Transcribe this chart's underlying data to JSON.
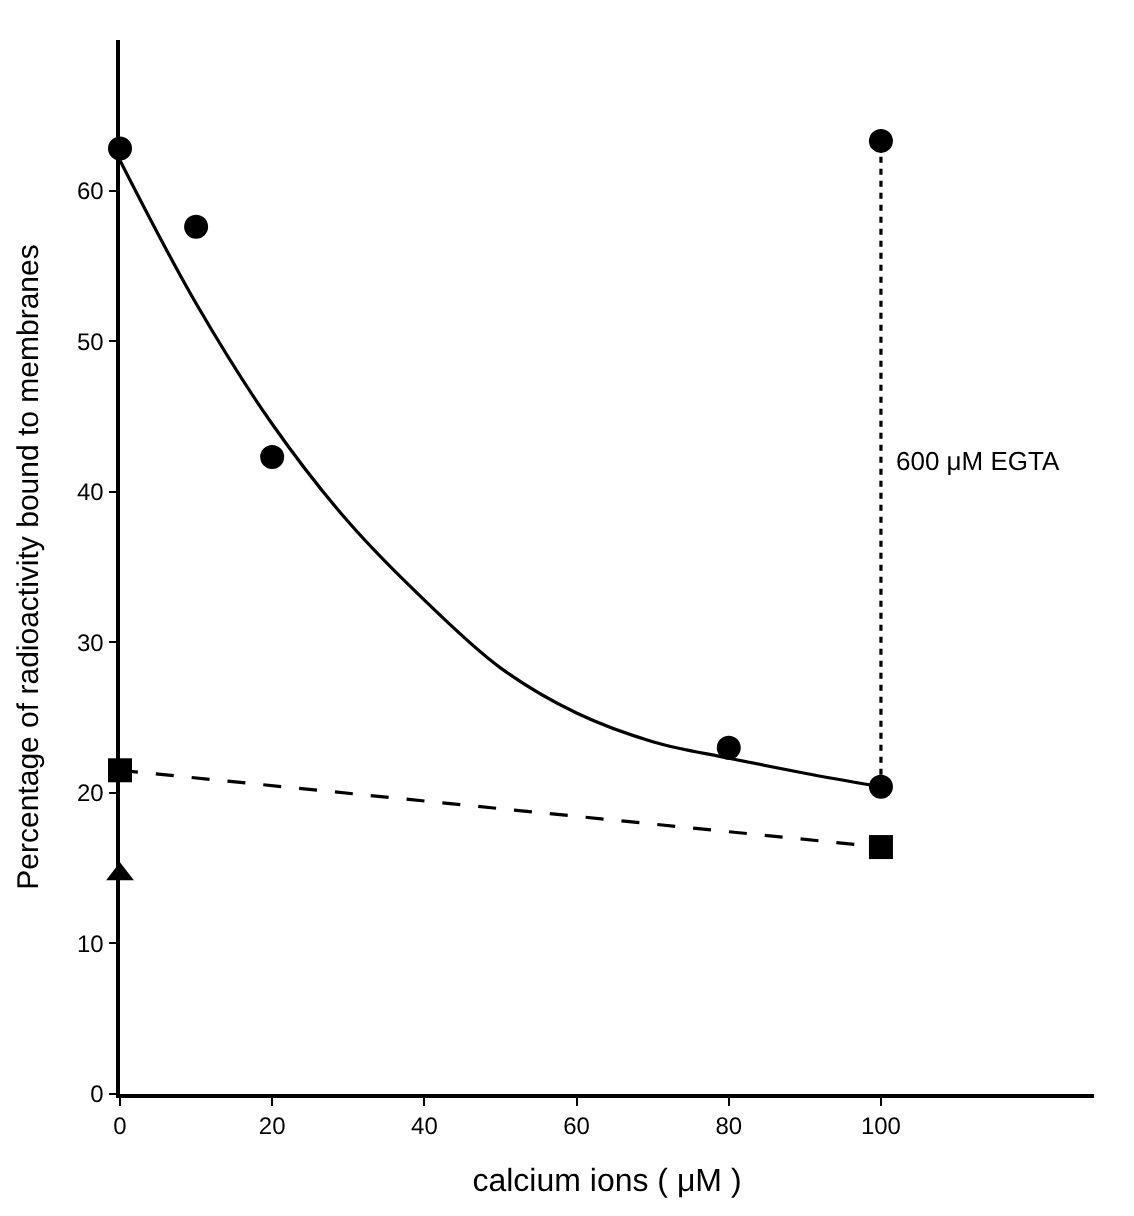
{
  "chart_data": {
    "type": "scatter",
    "xlabel": "calcium ions ( μM )",
    "ylabel": "Percentage of radioactivity bound to membranes",
    "xlim": [
      0,
      128
    ],
    "ylim": [
      0,
      70
    ],
    "xticks": [
      0,
      20,
      40,
      60,
      80,
      100
    ],
    "yticks": [
      0,
      10,
      20,
      30,
      40,
      50,
      60
    ],
    "annotations": [
      {
        "text": "600 μM EGTA",
        "x": 100,
        "y": 42
      }
    ],
    "series": [
      {
        "marker": "circle",
        "color": "#000000",
        "x": [
          0,
          10,
          20,
          80,
          100,
          100
        ],
        "values": [
          62.8,
          57.6,
          42.3,
          23.0,
          20.4,
          63.3
        ]
      },
      {
        "type": "line",
        "marker": "none",
        "line_style": "solid",
        "color": "#000000",
        "x": [
          0,
          10,
          20,
          30,
          40,
          50,
          60,
          70,
          80,
          90,
          100
        ],
        "values": [
          62,
          52.5,
          44.5,
          38,
          32.8,
          28.3,
          25.3,
          23.4,
          22.3,
          21.3,
          20.4
        ]
      },
      {
        "type": "line",
        "marker": "square",
        "line_style": "dashed",
        "color": "#000000",
        "x": [
          0,
          100
        ],
        "values": [
          21.5,
          16.4
        ]
      },
      {
        "marker": "triangle",
        "color": "#000000",
        "x": [
          0
        ],
        "values": [
          14.6
        ]
      },
      {
        "type": "line",
        "marker": "none",
        "line_style": "dotted",
        "color": "#000000",
        "x": [
          100,
          100
        ],
        "values": [
          20.4,
          63.3
        ]
      }
    ]
  }
}
